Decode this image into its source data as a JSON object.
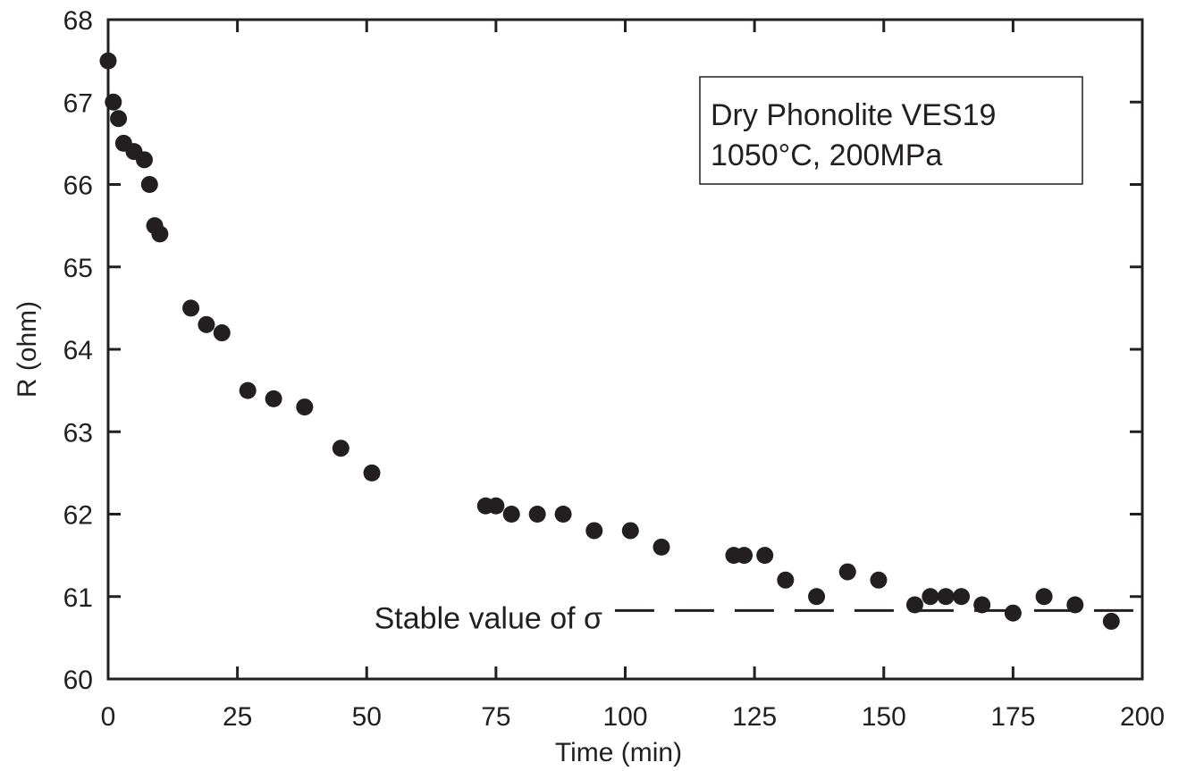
{
  "chart_data": {
    "type": "scatter",
    "title": "",
    "xlabel": "Time (min)",
    "ylabel": "R (ohm)",
    "xlim": [
      0,
      200
    ],
    "ylim": [
      60,
      68
    ],
    "xticks": [
      0,
      25,
      50,
      75,
      100,
      125,
      150,
      175,
      200
    ],
    "yticks": [
      60,
      61,
      62,
      63,
      64,
      65,
      66,
      67,
      68
    ],
    "legend": {
      "lines": [
        "Dry Phonolite VES19",
        "1050°C, 200MPa"
      ],
      "placement": "top-right"
    },
    "annotation": {
      "text": "Stable value of σ",
      "y": 60.83,
      "x_start": 98,
      "x_end": 200,
      "style": "dashed"
    },
    "grid": false,
    "marker_color": "#231f20",
    "series": [
      {
        "x": [
          0,
          1,
          2,
          3,
          5,
          7,
          8,
          9,
          10,
          16,
          19,
          22,
          27,
          32,
          38,
          45,
          51,
          73,
          75,
          78,
          83,
          88,
          94,
          101,
          107,
          121,
          123,
          127,
          131,
          137,
          143,
          149,
          156,
          159,
          162,
          165,
          169,
          175,
          181,
          187,
          194
        ],
        "y": [
          67.5,
          67.0,
          66.8,
          66.5,
          66.4,
          66.3,
          66.0,
          65.5,
          65.4,
          64.5,
          64.3,
          64.2,
          63.5,
          63.4,
          63.3,
          62.8,
          62.5,
          62.1,
          62.1,
          62.0,
          62.0,
          62.0,
          61.8,
          61.8,
          61.6,
          61.5,
          61.5,
          61.5,
          61.2,
          61.0,
          61.3,
          61.2,
          60.9,
          61.0,
          61.0,
          61.0,
          60.9,
          60.8,
          61.0,
          60.9,
          60.7
        ]
      }
    ]
  }
}
